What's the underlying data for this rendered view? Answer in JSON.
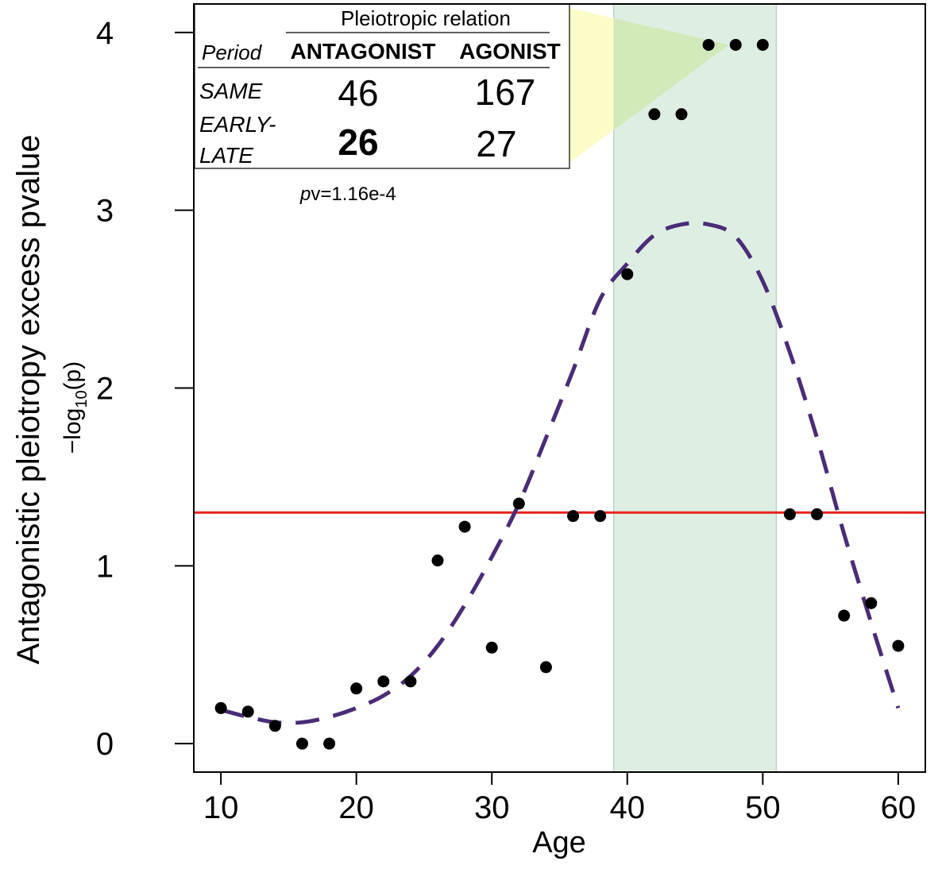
{
  "chart_data": {
    "type": "scatter",
    "xlabel": "Age",
    "ylabel": "Antagonistic pleiotropy excess pvalue",
    "ylabel_sub_prefix": "−log",
    "ylabel_sub_index": "10",
    "ylabel_sub_suffix": "(p)",
    "xlim": [
      8,
      62
    ],
    "ylim": [
      -0.16,
      4.16
    ],
    "x_ticks": [
      10,
      20,
      30,
      40,
      50,
      60
    ],
    "y_ticks": [
      0,
      1,
      2,
      3,
      4
    ],
    "points": {
      "x": [
        10,
        12,
        14,
        16,
        18,
        20,
        22,
        24,
        26,
        28,
        30,
        32,
        34,
        36,
        38,
        40,
        42,
        44,
        46,
        48,
        50,
        52,
        54,
        56,
        58,
        60
      ],
      "y": [
        0.2,
        0.18,
        0.1,
        0.0,
        0.0,
        0.31,
        0.35,
        0.35,
        1.03,
        1.22,
        0.54,
        1.35,
        0.43,
        1.28,
        1.28,
        2.64,
        3.54,
        3.54,
        3.93,
        3.93,
        3.93,
        1.29,
        1.29,
        0.72,
        0.79,
        0.55
      ]
    },
    "fit_curve": {
      "x": [
        10,
        12,
        14,
        16,
        18,
        20,
        22,
        24,
        26,
        28,
        30,
        32,
        34,
        36,
        38,
        40,
        42,
        44,
        46,
        48,
        50,
        52,
        54,
        56,
        58,
        60
      ],
      "y": [
        0.19,
        0.15,
        0.12,
        0.12,
        0.15,
        0.2,
        0.27,
        0.38,
        0.55,
        0.78,
        1.05,
        1.35,
        1.72,
        2.1,
        2.5,
        2.7,
        2.86,
        2.92,
        2.92,
        2.85,
        2.6,
        2.2,
        1.72,
        1.18,
        0.68,
        0.2
      ]
    },
    "threshold_y": 1.3,
    "shaded_region": {
      "x_start": 39,
      "x_end": 51
    },
    "colors": {
      "points": "#000000",
      "curve": "#4a2c78",
      "threshold": "#e8221c",
      "shade": "#deeee2",
      "shade_edge": "#b8d6c2",
      "wedge": "#fbfbc0",
      "wedge_overlap": "#cde7b8"
    },
    "inset_table": {
      "header": "Pleiotropic relation",
      "row_label_header": "Period",
      "columns": [
        "ANTAGONIST",
        "AGONIST"
      ],
      "rows": [
        {
          "label": "SAME",
          "values": [
            "46",
            "167"
          ]
        },
        {
          "label_line1": "EARLY-",
          "label_line2": "LATE",
          "values": [
            "26",
            "27"
          ]
        }
      ],
      "pvalue_prefix": "p",
      "pvalue_rest": "v=1.16e-4"
    }
  }
}
